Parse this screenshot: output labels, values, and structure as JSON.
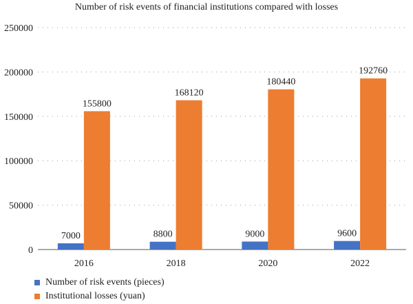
{
  "chart_data": {
    "type": "bar",
    "title": "Number of risk events of financial institutions compared with losses",
    "categories": [
      "2016",
      "2018",
      "2020",
      "2022"
    ],
    "series": [
      {
        "name": "Number of risk events (pieces)",
        "values": [
          7000,
          8800,
          9000,
          9600
        ],
        "color": "#4472c4"
      },
      {
        "name": "Institutional losses (yuan)",
        "values": [
          155800,
          168120,
          180440,
          192760
        ],
        "color": "#ed7d31"
      }
    ],
    "y_ticks": [
      "0",
      "50000",
      "100000",
      "150000",
      "200000",
      "250000"
    ],
    "ylim": [
      0,
      250000
    ],
    "xlabel": "",
    "ylabel": "",
    "grid": true,
    "legend_position": "bottom-left"
  }
}
